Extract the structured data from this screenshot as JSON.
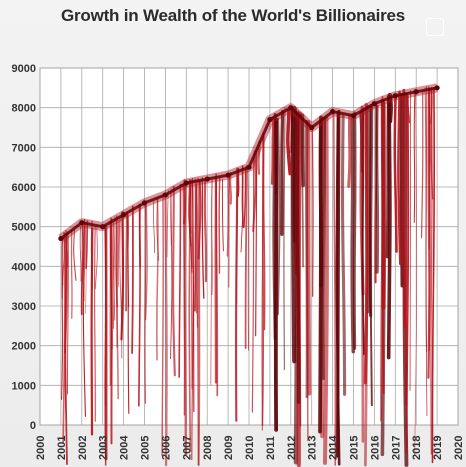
{
  "chart_data": {
    "type": "line",
    "title": "Growth in Wealth of the World's Billionaires",
    "xlabel": "",
    "ylabel": "",
    "x": [
      2001,
      2002,
      2003,
      2004,
      2005,
      2006,
      2007,
      2008,
      2009,
      2010,
      2011,
      2012,
      2013,
      2014,
      2015,
      2016,
      2017,
      2018,
      2019
    ],
    "series": [
      {
        "values": [
          4700,
          5100,
          5000,
          5300,
          5600,
          5800,
          6100,
          6200,
          6300,
          6500,
          7700,
          8000,
          7500,
          7900,
          7800,
          8100,
          8300,
          8400,
          8500
        ]
      }
    ],
    "x_ticks": [
      "2000",
      "2001",
      "2002",
      "2003",
      "2004",
      "2005",
      "2006",
      "2007",
      "2008",
      "2009",
      "2010",
      "2011",
      "2012",
      "2013",
      "2014",
      "2015",
      "2016",
      "2017",
      "2018",
      "2019",
      "2020"
    ],
    "y_ticks": [
      "0",
      "1000",
      "2000",
      "3000",
      "4000",
      "5000",
      "6000",
      "7000",
      "8000",
      "9000"
    ],
    "ylim": [
      0,
      9000
    ],
    "xlim": [
      2000,
      2020
    ],
    "grid": true,
    "series_color": "#b3121a",
    "dark_color": "#5e0508"
  }
}
